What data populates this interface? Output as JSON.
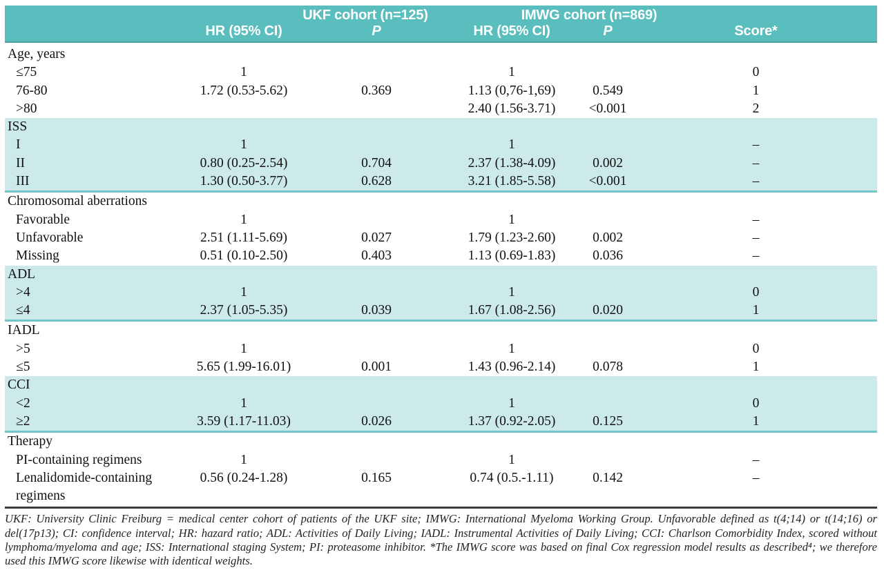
{
  "table": {
    "header": {
      "ukf_group": "UKF cohort (n=125)",
      "imwg_group": "IMWG cohort (n=869)",
      "ukf_hr_col": "HR (95% CI)",
      "ukf_p_col": "P",
      "imwg_hr_col": "HR (95% CI)",
      "imwg_p_col": "P",
      "score_col": "Score*"
    },
    "sections": [
      {
        "label": "Age, years",
        "shaded": false,
        "rows": [
          {
            "label": "≤75",
            "ukf_hr": "1",
            "ukf_p": "",
            "imwg_hr": "1",
            "imwg_p": "",
            "score": "0"
          },
          {
            "label": "76-80",
            "ukf_hr": "1.72 (0.53-5.62)",
            "ukf_p": "0.369",
            "imwg_hr": "1.13 (0,76-1,69)",
            "imwg_p": "0.549",
            "score": "1"
          },
          {
            "label": ">80",
            "ukf_hr": "",
            "ukf_p": "",
            "imwg_hr": "2.40 (1.56-3.71)",
            "imwg_p": "<0.001",
            "score": "2"
          }
        ]
      },
      {
        "label": "ISS",
        "shaded": true,
        "rows": [
          {
            "label": "I",
            "ukf_hr": "1",
            "ukf_p": "",
            "imwg_hr": "1",
            "imwg_p": "",
            "score": "–"
          },
          {
            "label": "II",
            "ukf_hr": "0.80 (0.25-2.54)",
            "ukf_p": "0.704",
            "imwg_hr": "2.37 (1.38-4.09)",
            "imwg_p": "0.002",
            "score": "–"
          },
          {
            "label": "III",
            "ukf_hr": "1.30 (0.50-3.77)",
            "ukf_p": "0.628",
            "imwg_hr": "3.21 (1.85-5.58)",
            "imwg_p": "<0.001",
            "score": "–"
          }
        ]
      },
      {
        "label": "Chromosomal aberrations",
        "shaded": false,
        "rows": [
          {
            "label": "Favorable",
            "ukf_hr": "1",
            "ukf_p": "",
            "imwg_hr": "1",
            "imwg_p": "",
            "score": "–"
          },
          {
            "label": "Unfavorable",
            "ukf_hr": "2.51 (1.11-5.69)",
            "ukf_p": "0.027",
            "imwg_hr": "1.79 (1.23-2.60)",
            "imwg_p": "0.002",
            "score": "–"
          },
          {
            "label": "Missing",
            "ukf_hr": "0.51 (0.10-2.50)",
            "ukf_p": "0.403",
            "imwg_hr": "1.13 (0.69-1.83)",
            "imwg_p": "0.036",
            "score": "–"
          }
        ]
      },
      {
        "label": "ADL",
        "shaded": true,
        "rows": [
          {
            "label": ">4",
            "ukf_hr": "1",
            "ukf_p": "",
            "imwg_hr": "1",
            "imwg_p": "",
            "score": "0"
          },
          {
            "label": "≤4",
            "ukf_hr": "2.37 (1.05-5.35)",
            "ukf_p": "0.039",
            "imwg_hr": "1.67 (1.08-2.56)",
            "imwg_p": "0.020",
            "score": "1"
          }
        ]
      },
      {
        "label": "IADL",
        "shaded": false,
        "rows": [
          {
            "label": ">5",
            "ukf_hr": "1",
            "ukf_p": "",
            "imwg_hr": "1",
            "imwg_p": "",
            "score": "0"
          },
          {
            "label": "≤5",
            "ukf_hr": "5.65 (1.99-16.01)",
            "ukf_p": "0.001",
            "imwg_hr": "1.43 (0.96-2.14)",
            "imwg_p": "0.078",
            "score": "1"
          }
        ]
      },
      {
        "label": "CCI",
        "shaded": true,
        "rows": [
          {
            "label": "<2",
            "ukf_hr": "1",
            "ukf_p": "",
            "imwg_hr": "1",
            "imwg_p": "",
            "score": "0"
          },
          {
            "label": "≥2",
            "ukf_hr": "3.59 (1.17-11.03)",
            "ukf_p": "0.026",
            "imwg_hr": "1.37 (0.92-2.05)",
            "imwg_p": "0.125",
            "score": "1"
          }
        ]
      },
      {
        "label": "Therapy",
        "shaded": false,
        "rows": [
          {
            "label": "PI-containing regimens",
            "ukf_hr": "1",
            "ukf_p": "",
            "imwg_hr": "1",
            "imwg_p": "",
            "score": "–"
          },
          {
            "label": "Lenalidomide-containing regimens",
            "ukf_hr": "0.56 (0.24-1.28)",
            "ukf_p": "0.165",
            "imwg_hr": "0.74 (0.5.-1.11)",
            "imwg_p": "0.142",
            "score": "–"
          }
        ]
      }
    ],
    "footnote": "UKF: University Clinic Freiburg = medical center cohort of patients of the UKF site; IMWG: International Myeloma Working Group. Unfavorable defined as t(4;14) or t(14;16) or del(17p13); CI: confidence interval; HR: hazard ratio; ADL: Activities of Daily Living; IADL: Instrumental Activities of Daily Living; CCI: Charlson Comorbidity Index, scored without lymphoma/myeloma and age; ISS: International staging System; PI: proteasome inhibitor. *The IMWG score was based on final Cox regression model results as described⁴; we therefore used this IMWG score likewise with identical weights."
  },
  "colors": {
    "header_bg": "#5abdbe",
    "header_rule": "#4b9fa1",
    "band_bg": "#cdeaea",
    "band_rule": "#72c6c7",
    "bottom_rule": "#3a3a3a"
  }
}
